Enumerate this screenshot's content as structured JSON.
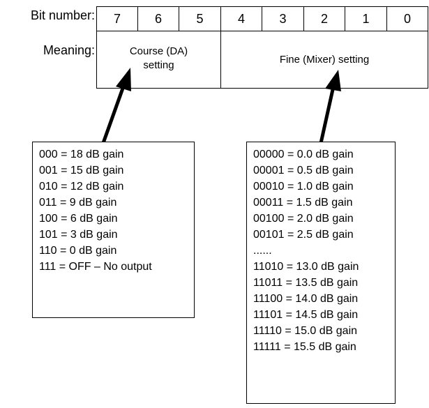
{
  "labels": {
    "bit_number": "Bit number:",
    "meaning": "Meaning:"
  },
  "bits": [
    "7",
    "6",
    "5",
    "4",
    "3",
    "2",
    "1",
    "0"
  ],
  "fields": {
    "coarse": "Course (DA) setting",
    "fine": "Fine (Mixer) setting"
  },
  "coarse_table": [
    "000 = 18 dB gain",
    "001 = 15 dB gain",
    "010 = 12 dB gain",
    "011 = 9 dB gain",
    "100 = 6 dB gain",
    "101 = 3 dB gain",
    "110 = 0 dB gain",
    "111 = OFF – No output"
  ],
  "fine_table": [
    "00000 = 0.0 dB gain",
    "00001 = 0.5 dB gain",
    "00010 = 1.0 dB gain",
    "00011 = 1.5 dB gain",
    "00100 = 2.0 dB gain",
    "00101 = 2.5 dB gain",
    "......",
    "11010 = 13.0 dB gain",
    "11011 = 13.5 dB gain",
    "11100 = 14.0 dB gain",
    "11101 = 14.5 dB gain",
    "11110 = 15.0 dB gain",
    "11111 = 15.5 dB gain"
  ]
}
